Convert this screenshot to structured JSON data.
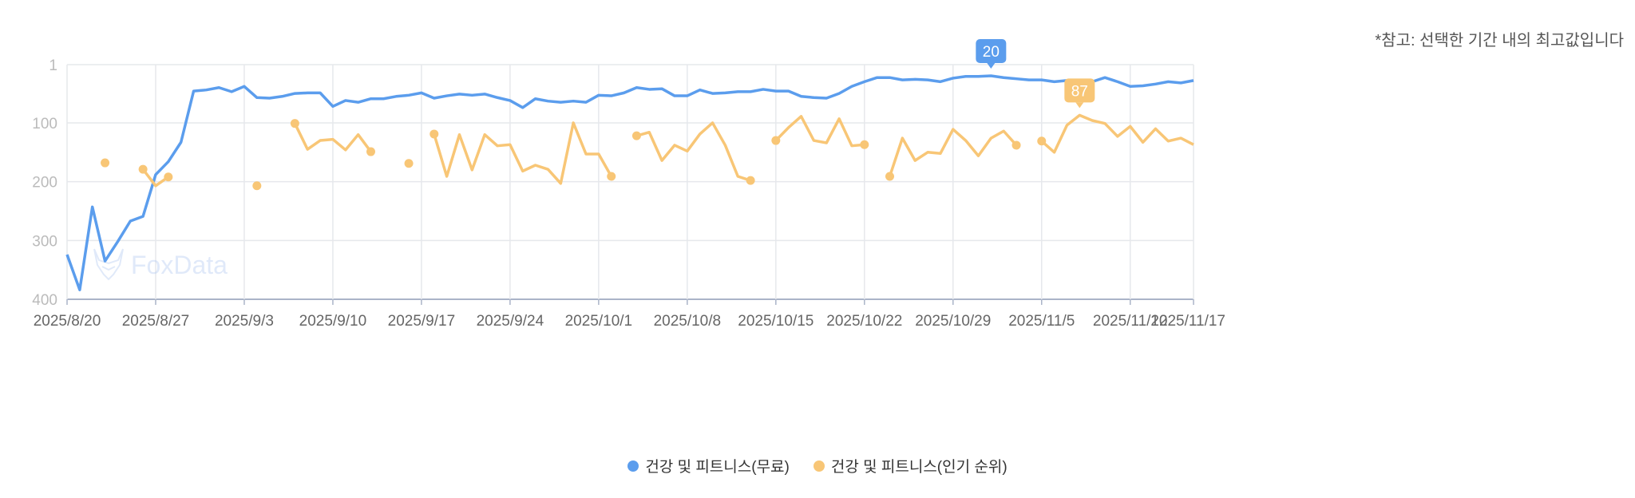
{
  "note": "*참고: 선택한 기간 내의 최고값입니다",
  "watermark": "FoxData",
  "chart_data": {
    "type": "line",
    "title": "",
    "xlabel": "",
    "ylabel": "",
    "y_inverted": true,
    "ylim": [
      1,
      400
    ],
    "yticks": [
      "1",
      "100",
      "200",
      "300",
      "400"
    ],
    "ytick_values": [
      1,
      100,
      200,
      300,
      400
    ],
    "start_date": "2025/8/20",
    "days": 90,
    "xticks": [
      "2025/8/20",
      "2025/8/27",
      "2025/9/3",
      "2025/9/10",
      "2025/9/17",
      "2025/9/24",
      "2025/10/1",
      "2025/10/8",
      "2025/10/15",
      "2025/10/22",
      "2025/10/29",
      "2025/11/5",
      "2025/11/12",
      "2025/11/17"
    ],
    "xtick_days": [
      0,
      7,
      14,
      21,
      28,
      35,
      42,
      49,
      56,
      63,
      70,
      77,
      84,
      89
    ],
    "grid": true,
    "legend_position": "bottom",
    "series": [
      {
        "name": "건강 및 피트니스(무료)",
        "color": "#5b9ded",
        "values": [
          324,
          384,
          243,
          335,
          302,
          267,
          259,
          188,
          166,
          133,
          46,
          44,
          40,
          47,
          38,
          57,
          58,
          55,
          50,
          49,
          49,
          72,
          62,
          65,
          59,
          59,
          55,
          53,
          49,
          58,
          54,
          51,
          53,
          51,
          57,
          62,
          74,
          59,
          63,
          65,
          63,
          65,
          53,
          54,
          49,
          40,
          43,
          42,
          54,
          54,
          44,
          50,
          49,
          47,
          47,
          43,
          46,
          46,
          55,
          57,
          58,
          50,
          38,
          30,
          23,
          23,
          27,
          26,
          27,
          30,
          24,
          21,
          21,
          20,
          23,
          25,
          27,
          27,
          30,
          28,
          32,
          30,
          23,
          30,
          38,
          37,
          34,
          30,
          32,
          28
        ],
        "peak_label": "20",
        "peak_day": 73
      },
      {
        "name": "건강 및 피트니스(인기 순위)",
        "color": "#f8c676",
        "values": [
          null,
          null,
          null,
          168,
          null,
          null,
          179,
          207,
          192,
          null,
          null,
          null,
          null,
          null,
          null,
          207,
          null,
          null,
          101,
          145,
          130,
          128,
          146,
          120,
          149,
          null,
          null,
          169,
          null,
          119,
          191,
          120,
          180,
          120,
          139,
          137,
          182,
          172,
          179,
          203,
          100,
          153,
          153,
          191,
          null,
          122,
          116,
          164,
          138,
          148,
          119,
          100,
          138,
          191,
          198,
          null,
          130,
          108,
          89,
          130,
          134,
          93,
          139,
          137,
          null,
          191,
          126,
          164,
          150,
          152,
          111,
          130,
          156,
          126,
          114,
          138,
          null,
          131,
          150,
          104,
          87,
          96,
          101,
          123,
          106,
          133,
          110,
          131,
          126,
          137
        ],
        "peak_label": "87",
        "peak_day": 80
      }
    ]
  }
}
